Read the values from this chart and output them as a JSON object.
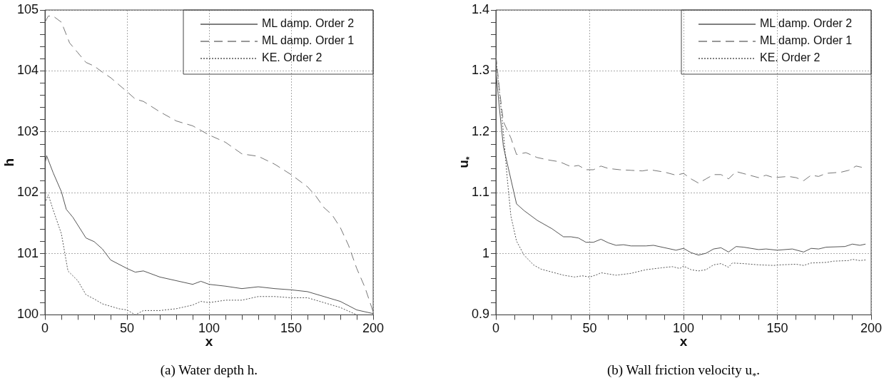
{
  "chart_data": [
    {
      "type": "line",
      "title": "(a) Water depth h.",
      "xlabel": "x",
      "ylabel": "h",
      "xlim": [
        0,
        200
      ],
      "ylim": [
        100,
        105
      ],
      "xticks": [
        0,
        {
          "value": 10,
          "label": null
        },
        {
          "value": 20,
          "label": null
        },
        {
          "value": 30,
          "label": null
        },
        {
          "value": 40,
          "label": null
        },
        50,
        {
          "value": 60,
          "label": null
        },
        {
          "value": 70,
          "label": null
        },
        {
          "value": 80,
          "label": null
        },
        {
          "value": 90,
          "label": null
        },
        100,
        {
          "value": 110,
          "label": null
        },
        {
          "value": 120,
          "label": null
        },
        {
          "value": 130,
          "label": null
        },
        {
          "value": 140,
          "label": null
        },
        150,
        {
          "value": 160,
          "label": null
        },
        {
          "value": 170,
          "label": null
        },
        {
          "value": 180,
          "label": null
        },
        {
          "value": 190,
          "label": null
        },
        200
      ],
      "yticks": [
        100,
        {
          "value": 100.2,
          "label": null
        },
        {
          "value": 100.4,
          "label": null
        },
        {
          "value": 100.6,
          "label": null
        },
        {
          "value": 100.8,
          "label": null
        },
        101,
        {
          "value": 101.2,
          "label": null
        },
        {
          "value": 101.4,
          "label": null
        },
        {
          "value": 101.6,
          "label": null
        },
        {
          "value": 101.8,
          "label": null
        },
        102,
        {
          "value": 102.2,
          "label": null
        },
        {
          "value": 102.4,
          "label": null
        },
        {
          "value": 102.6,
          "label": null
        },
        {
          "value": 102.8,
          "label": null
        },
        103,
        {
          "value": 103.2,
          "label": null
        },
        {
          "value": 103.4,
          "label": null
        },
        {
          "value": 103.6,
          "label": null
        },
        {
          "value": 103.8,
          "label": null
        },
        104,
        {
          "value": 104.2,
          "label": null
        },
        {
          "value": 104.4,
          "label": null
        },
        {
          "value": 104.6,
          "label": null
        },
        {
          "value": 104.8,
          "label": null
        },
        105
      ],
      "grid": true,
      "legend": "top right",
      "marker": "none",
      "series": [
        {
          "name": "ML damp. Order 2",
          "color": "#555555",
          "line_style": "solid",
          "x": [
            0,
            1,
            5,
            10,
            13,
            17,
            25,
            30,
            35,
            40,
            50,
            55,
            60,
            70,
            80,
            90,
            95,
            100,
            110,
            120,
            130,
            140,
            150,
            160,
            170,
            180,
            190,
            200
          ],
          "values": [
            102.48,
            102.61,
            102.33,
            102.02,
            101.73,
            101.6,
            101.26,
            101.2,
            101.08,
            100.9,
            100.76,
            100.7,
            100.72,
            100.62,
            100.56,
            100.5,
            100.55,
            100.5,
            100.47,
            100.43,
            100.46,
            100.43,
            100.41,
            100.38,
            100.3,
            100.22,
            100.08,
            100.02
          ]
        },
        {
          "name": "ML damp. Order 1",
          "color": "#777777",
          "line_style": "dashed",
          "x": [
            0,
            2,
            5,
            10,
            15,
            20,
            25,
            30,
            35,
            40,
            50,
            55,
            60,
            70,
            80,
            90,
            100,
            110,
            120,
            130,
            140,
            150,
            160,
            165,
            170,
            175,
            180,
            185,
            190,
            195,
            200
          ],
          "values": [
            104.8,
            104.9,
            104.9,
            104.8,
            104.46,
            104.3,
            104.14,
            104.08,
            103.98,
            103.89,
            103.66,
            103.54,
            103.5,
            103.33,
            103.18,
            103.1,
            102.95,
            102.83,
            102.64,
            102.6,
            102.47,
            102.3,
            102.1,
            101.95,
            101.76,
            101.64,
            101.43,
            101.14,
            100.76,
            100.45,
            100.05
          ]
        },
        {
          "name": "KE. Order 2",
          "color": "#555555",
          "line_style": "dotted",
          "x": [
            0,
            2,
            5,
            10,
            14,
            20,
            25,
            30,
            35,
            40,
            45,
            50,
            55,
            60,
            70,
            80,
            90,
            95,
            100,
            110,
            120,
            130,
            140,
            150,
            160,
            170,
            180,
            190
          ],
          "values": [
            101.83,
            101.97,
            101.72,
            101.33,
            100.72,
            100.56,
            100.33,
            100.26,
            100.18,
            100.14,
            100.1,
            100.08,
            100.0,
            100.07,
            100.07,
            100.1,
            100.16,
            100.22,
            100.2,
            100.24,
            100.24,
            100.3,
            100.3,
            100.28,
            100.28,
            100.2,
            100.12,
            100.0
          ]
        }
      ]
    },
    {
      "type": "line",
      "title": "(b) Wall friction velocity u$_{*}$.",
      "xlabel": "x",
      "ylabel": "u$_{*}$",
      "xlim": [
        0,
        200
      ],
      "ylim": [
        0.9,
        1.4
      ],
      "xticks": [
        0,
        {
          "value": 10,
          "label": null
        },
        {
          "value": 20,
          "label": null
        },
        {
          "value": 30,
          "label": null
        },
        {
          "value": 40,
          "label": null
        },
        50,
        {
          "value": 60,
          "label": null
        },
        {
          "value": 70,
          "label": null
        },
        {
          "value": 80,
          "label": null
        },
        {
          "value": 90,
          "label": null
        },
        100,
        {
          "value": 110,
          "label": null
        },
        {
          "value": 120,
          "label": null
        },
        {
          "value": 130,
          "label": null
        },
        {
          "value": 140,
          "label": null
        },
        150,
        {
          "value": 160,
          "label": null
        },
        {
          "value": 170,
          "label": null
        },
        {
          "value": 180,
          "label": null
        },
        {
          "value": 190,
          "label": null
        },
        200
      ],
      "yticks": [
        0.9,
        {
          "value": 0.92,
          "label": null
        },
        {
          "value": 0.94,
          "label": null
        },
        {
          "value": 0.96,
          "label": null
        },
        {
          "value": 0.98,
          "label": null
        },
        1,
        {
          "value": 1.02,
          "label": null
        },
        {
          "value": 1.04,
          "label": null
        },
        {
          "value": 1.06,
          "label": null
        },
        {
          "value": 1.08,
          "label": null
        },
        1.1,
        {
          "value": 1.12,
          "label": null
        },
        {
          "value": 1.14,
          "label": null
        },
        {
          "value": 1.16,
          "label": null
        },
        {
          "value": 1.18,
          "label": null
        },
        1.2,
        {
          "value": 1.22,
          "label": null
        },
        {
          "value": 1.24,
          "label": null
        },
        {
          "value": 1.26,
          "label": null
        },
        {
          "value": 1.28,
          "label": null
        },
        1.3,
        {
          "value": 1.32,
          "label": null
        },
        {
          "value": 1.34,
          "label": null
        },
        {
          "value": 1.36,
          "label": null
        },
        {
          "value": 1.38,
          "label": null
        },
        1.4
      ],
      "grid": true,
      "legend": "top right",
      "marker": "none",
      "series": [
        {
          "name": "ML damp. Order 2",
          "color": "#555555",
          "line_style": "solid",
          "x": [
            0,
            2,
            4,
            11,
            15,
            22,
            30,
            36,
            40,
            44,
            48,
            52,
            56,
            60,
            64,
            68,
            72,
            80,
            84,
            96,
            100,
            104,
            108,
            112,
            116,
            120,
            124,
            128,
            132,
            140,
            144,
            150,
            158,
            164,
            168,
            172,
            176,
            186,
            190,
            194,
            197
          ],
          "values": [
            1.3,
            1.235,
            1.176,
            1.082,
            1.071,
            1.055,
            1.041,
            1.028,
            1.028,
            1.026,
            1.019,
            1.019,
            1.024,
            1.018,
            1.014,
            1.015,
            1.013,
            1.013,
            1.014,
            1.006,
            1.009,
            1.002,
            0.998,
            1.001,
            1.008,
            1.01,
            1.003,
            1.012,
            1.011,
            1.007,
            1.008,
            1.006,
            1.008,
            1.003,
            1.009,
            1.008,
            1.011,
            1.012,
            1.016,
            1.014,
            1.016
          ]
        },
        {
          "name": "ML damp. Order 1",
          "color": "#777777",
          "line_style": "dashed",
          "x": [
            0,
            2,
            4,
            8,
            11,
            16,
            22,
            28,
            34,
            40,
            44,
            48,
            52,
            56,
            60,
            66,
            72,
            78,
            82,
            90,
            96,
            100,
            104,
            108,
            112,
            116,
            120,
            124,
            128,
            134,
            140,
            144,
            148,
            156,
            160,
            164,
            168,
            172,
            176,
            184,
            188,
            192,
            195
          ],
          "values": [
            1.326,
            1.267,
            1.217,
            1.19,
            1.163,
            1.166,
            1.158,
            1.154,
            1.151,
            1.143,
            1.145,
            1.138,
            1.138,
            1.144,
            1.14,
            1.138,
            1.137,
            1.136,
            1.138,
            1.134,
            1.129,
            1.132,
            1.123,
            1.116,
            1.123,
            1.13,
            1.13,
            1.123,
            1.135,
            1.13,
            1.125,
            1.129,
            1.125,
            1.127,
            1.125,
            1.12,
            1.129,
            1.127,
            1.132,
            1.134,
            1.137,
            1.144,
            1.142
          ]
        },
        {
          "name": "KE. Order 2",
          "color": "#555555",
          "line_style": "dotted",
          "x": [
            0,
            2,
            4,
            6,
            8,
            11,
            15,
            20,
            24,
            30,
            36,
            42,
            46,
            50,
            54,
            56,
            64,
            72,
            80,
            88,
            94,
            98,
            100,
            104,
            108,
            112,
            116,
            120,
            124,
            126,
            132,
            140,
            148,
            152,
            160,
            164,
            168,
            176,
            180,
            188,
            190,
            194,
            197
          ],
          "values": [
            1.322,
            1.262,
            1.199,
            1.126,
            1.062,
            1.021,
            0.998,
            0.982,
            0.975,
            0.97,
            0.965,
            0.962,
            0.964,
            0.962,
            0.966,
            0.969,
            0.965,
            0.968,
            0.974,
            0.977,
            0.979,
            0.976,
            0.98,
            0.974,
            0.972,
            0.974,
            0.982,
            0.984,
            0.978,
            0.985,
            0.984,
            0.982,
            0.981,
            0.982,
            0.983,
            0.981,
            0.985,
            0.986,
            0.988,
            0.989,
            0.991,
            0.989,
            0.99
          ]
        }
      ]
    }
  ]
}
